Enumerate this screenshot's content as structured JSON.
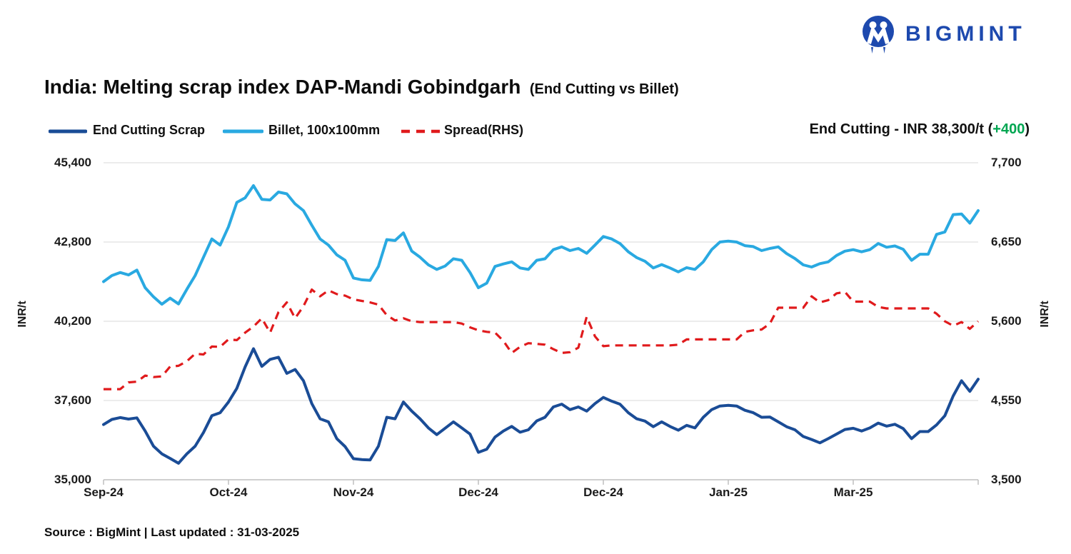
{
  "logo": {
    "text": "BIGMINT"
  },
  "title": {
    "main": "India: Melting scrap index DAP-Mandi Gobindgarh",
    "suffix": "(End Cutting vs Billet)"
  },
  "legend": [
    {
      "label": "End Cutting Scrap",
      "style": "solid",
      "color": "#1a4c96"
    },
    {
      "label": "Billet, 100x100mm",
      "style": "solid",
      "color": "#29a9e1"
    },
    {
      "label": "Spread(RHS)",
      "style": "dashed",
      "color": "#e01a1c"
    }
  ],
  "annotation": {
    "prefix": "End Cutting - INR 38,300/t (",
    "change": "+400",
    "suffix": ")",
    "change_color": "#00a651"
  },
  "axes": {
    "left": {
      "title": "INR/t",
      "ticks": [
        "45,400",
        "42,800",
        "40,200",
        "37,600",
        "35,000"
      ]
    },
    "right": {
      "title": "INR/t",
      "ticks": [
        "7,700",
        "6,650",
        "5,600",
        "4,550",
        "3,500"
      ]
    },
    "x": {
      "labels": [
        "Sep-24",
        "Oct-24",
        "Nov-24",
        "Dec-24",
        "Dec-24",
        "Jan-25",
        "Mar-25"
      ]
    }
  },
  "source": "Source : BigMint | Last updated : 31-03-2025",
  "chart_data": {
    "type": "line",
    "title": "India: Melting scrap index DAP-Mandi Gobindgarh (End Cutting vs Billet)",
    "x_labels": [
      "Sep-24",
      "Oct-24",
      "Nov-24",
      "Dec-24",
      "Dec-24",
      "Jan-25",
      "Mar-25"
    ],
    "left_axis": {
      "label": "INR/t",
      "min": 35000,
      "max": 45400,
      "tick_step": 2600
    },
    "right_axis": {
      "label": "INR/t",
      "min": 3500,
      "max": 7700,
      "tick_step": 1050
    },
    "grid": true,
    "legend_position": "top-left",
    "last_value_note": "End Cutting - INR 38,300/t (+400)",
    "series": [
      {
        "name": "End Cutting Scrap",
        "axis": "left",
        "color": "#1a4c96",
        "style": "solid",
        "width": 4,
        "values": [
          36810,
          36980,
          37040,
          36990,
          37030,
          36600,
          36100,
          35850,
          35700,
          35540,
          35850,
          36100,
          36550,
          37100,
          37200,
          37550,
          38000,
          38700,
          39300,
          38720,
          38950,
          39020,
          38490,
          38620,
          38250,
          37500,
          37000,
          36900,
          36350,
          36090,
          35690,
          35660,
          35650,
          36100,
          37050,
          37000,
          37550,
          37250,
          37000,
          36700,
          36480,
          36690,
          36900,
          36700,
          36500,
          35900,
          36000,
          36400,
          36600,
          36750,
          36560,
          36640,
          36930,
          37050,
          37390,
          37480,
          37300,
          37390,
          37250,
          37500,
          37700,
          37580,
          37480,
          37200,
          37000,
          36925,
          36740,
          36900,
          36750,
          36625,
          36785,
          36700,
          37050,
          37300,
          37420,
          37440,
          37420,
          37280,
          37200,
          37050,
          37060,
          36900,
          36740,
          36640,
          36420,
          36320,
          36210,
          36350,
          36500,
          36650,
          36690,
          36600,
          36700,
          36860,
          36760,
          36820,
          36680,
          36350,
          36580,
          36580,
          36800,
          37100,
          37750,
          38250,
          37900,
          38300
        ]
      },
      {
        "name": "Billet, 100x100mm",
        "axis": "left",
        "color": "#29a9e1",
        "style": "solid",
        "width": 4,
        "values": [
          41500,
          41700,
          41800,
          41720,
          41880,
          41300,
          41000,
          40760,
          40960,
          40770,
          41250,
          41700,
          42300,
          42900,
          42700,
          43300,
          44100,
          44250,
          44650,
          44200,
          44180,
          44440,
          44380,
          44050,
          43830,
          43350,
          42900,
          42700,
          42380,
          42200,
          41620,
          41560,
          41540,
          42000,
          42880,
          42850,
          43100,
          42500,
          42300,
          42050,
          41900,
          42010,
          42250,
          42200,
          41800,
          41300,
          41450,
          42000,
          42080,
          42150,
          41950,
          41900,
          42200,
          42250,
          42550,
          42640,
          42520,
          42590,
          42430,
          42700,
          42980,
          42900,
          42750,
          42480,
          42290,
          42170,
          41950,
          42060,
          41950,
          41820,
          41960,
          41900,
          42150,
          42550,
          42800,
          42830,
          42800,
          42680,
          42650,
          42520,
          42590,
          42640,
          42420,
          42260,
          42050,
          41980,
          42090,
          42150,
          42360,
          42500,
          42550,
          42480,
          42550,
          42750,
          42630,
          42670,
          42560,
          42200,
          42400,
          42400,
          43050,
          43130,
          43700,
          43720,
          43420,
          43830
        ]
      },
      {
        "name": "Spread(RHS)",
        "axis": "right",
        "color": "#e01a1c",
        "style": "dashed",
        "width": 3.2,
        "values": [
          4700,
          4700,
          4700,
          4790,
          4800,
          4880,
          4860,
          4870,
          5000,
          5010,
          5070,
          5170,
          5160,
          5265,
          5260,
          5360,
          5350,
          5450,
          5530,
          5640,
          5450,
          5720,
          5850,
          5640,
          5800,
          6020,
          5930,
          6010,
          5960,
          5940,
          5890,
          5870,
          5850,
          5820,
          5680,
          5610,
          5640,
          5600,
          5590,
          5590,
          5590,
          5590,
          5590,
          5570,
          5520,
          5480,
          5460,
          5450,
          5340,
          5180,
          5260,
          5310,
          5300,
          5290,
          5230,
          5180,
          5190,
          5250,
          5660,
          5400,
          5270,
          5280,
          5280,
          5280,
          5280,
          5280,
          5280,
          5280,
          5280,
          5290,
          5360,
          5360,
          5360,
          5360,
          5360,
          5360,
          5360,
          5460,
          5480,
          5490,
          5570,
          5780,
          5780,
          5780,
          5780,
          5930,
          5850,
          5880,
          5970,
          5990,
          5860,
          5860,
          5860,
          5790,
          5770,
          5770,
          5770,
          5770,
          5770,
          5770,
          5700,
          5600,
          5540,
          5590,
          5500,
          5600
        ]
      }
    ]
  }
}
